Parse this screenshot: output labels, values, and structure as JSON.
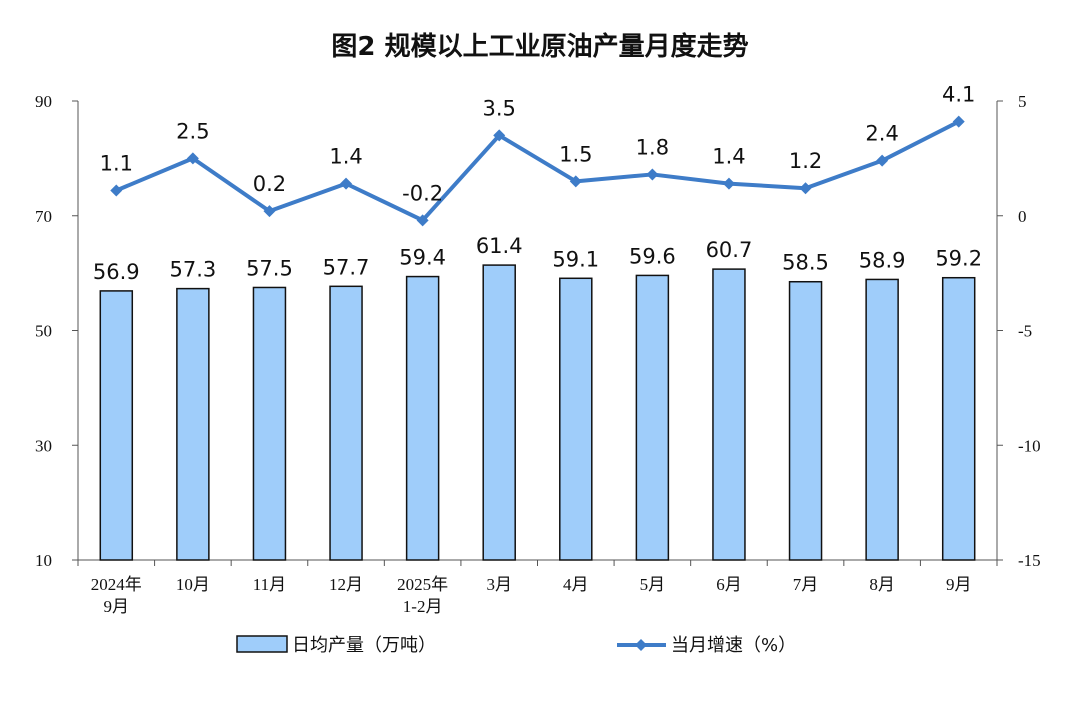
{
  "chart_data": {
    "type": "bar+line",
    "title": "图2  规模以上工业原油产量月度走势",
    "categories": [
      [
        "2024年",
        "9月"
      ],
      [
        "10月"
      ],
      [
        "11月"
      ],
      [
        "12月"
      ],
      [
        "2025年",
        "1-2月"
      ],
      [
        "3月"
      ],
      [
        "4月"
      ],
      [
        "5月"
      ],
      [
        "6月"
      ],
      [
        "7月"
      ],
      [
        "8月"
      ],
      [
        "9月"
      ]
    ],
    "series": [
      {
        "name": "日均产量（万吨）",
        "type": "bar",
        "axis": "left",
        "values": [
          56.9,
          57.3,
          57.5,
          57.7,
          59.4,
          61.4,
          59.1,
          59.6,
          60.7,
          58.5,
          58.9,
          59.2
        ],
        "labels": [
          "56.9",
          "57.3",
          "57.5",
          "57.7",
          "59.4",
          "61.4",
          "59.1",
          "59.6",
          "60.7",
          "58.5",
          "58.9",
          "59.2"
        ],
        "color": "#9fcdfa",
        "border": "#111111"
      },
      {
        "name": "当月增速（%）",
        "type": "line",
        "axis": "right",
        "values": [
          1.1,
          2.5,
          0.2,
          1.4,
          -0.2,
          3.5,
          1.5,
          1.8,
          1.4,
          1.2,
          2.4,
          4.1
        ],
        "labels": [
          "1.1",
          "2.5",
          "0.2",
          "1.4",
          "-0.2",
          "3.5",
          "1.5",
          "1.8",
          "1.4",
          "1.2",
          "2.4",
          "4.1"
        ],
        "color": "#3e7cc8"
      }
    ],
    "y_left": {
      "min": 10,
      "max": 90,
      "ticks": [
        "90",
        "70",
        "50",
        "30",
        "10"
      ],
      "tick_values": [
        90,
        70,
        50,
        30,
        10
      ]
    },
    "y_right": {
      "min": -15,
      "max": 5,
      "ticks": [
        "5",
        "0",
        "-5",
        "-10",
        "-15"
      ],
      "tick_values": [
        5,
        0,
        -5,
        -10,
        -15
      ]
    },
    "grid": false,
    "legend_position": "bottom"
  }
}
